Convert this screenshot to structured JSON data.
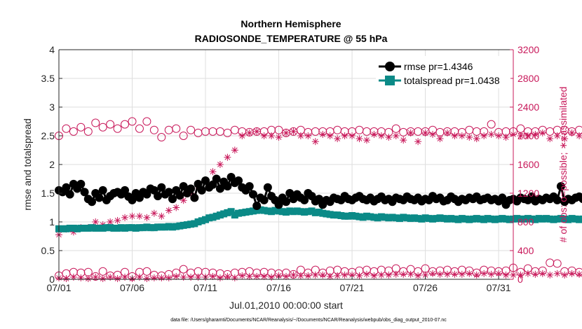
{
  "chart_data": {
    "type": "line",
    "title_line1": "Northern Hemisphere",
    "title_line2": "RADIOSONDE_TEMPERATURE @ 55 hPa",
    "xlabel": "Jul.01,2010 00:00:00 start",
    "ylabel_left": "rmse and totalspread",
    "ylabel_right": "# of obs: o=possible; ∗=assimilated",
    "footer": "data file: /Users/gharamti/Documents/NCAR/Reanalysis/~/Documents/NCAR/Reanalysis/webpub/obs_diag_output_2010-07.nc",
    "xlim": [
      0,
      31
    ],
    "ylim_left": [
      0,
      4
    ],
    "ylim_right": [
      0,
      3200
    ],
    "x_ticks": [
      {
        "day": 0,
        "label": "07/01"
      },
      {
        "day": 5,
        "label": "07/06"
      },
      {
        "day": 10,
        "label": "07/11"
      },
      {
        "day": 15,
        "label": "07/16"
      },
      {
        "day": 20,
        "label": "07/21"
      },
      {
        "day": 25,
        "label": "07/26"
      },
      {
        "day": 30,
        "label": "07/31"
      }
    ],
    "y_ticks_left": [
      {
        "value": 0,
        "label": "0"
      },
      {
        "value": 0.5,
        "label": "0.5"
      },
      {
        "value": 1,
        "label": "1"
      },
      {
        "value": 1.5,
        "label": "1.5"
      },
      {
        "value": 2,
        "label": "2"
      },
      {
        "value": 2.5,
        "label": "2.5"
      },
      {
        "value": 3,
        "label": "3"
      },
      {
        "value": 3.5,
        "label": "3.5"
      },
      {
        "value": 4,
        "label": "4"
      }
    ],
    "y_ticks_right": [
      {
        "value": 0,
        "label": "0"
      },
      {
        "value": 400,
        "label": "400"
      },
      {
        "value": 800,
        "label": "800"
      },
      {
        "value": 1200,
        "label": "1200"
      },
      {
        "value": 1600,
        "label": "1600"
      },
      {
        "value": 2000,
        "label": "2000"
      },
      {
        "value": 2400,
        "label": "2400"
      },
      {
        "value": 2800,
        "label": "2800"
      },
      {
        "value": 3200,
        "label": "3200"
      }
    ],
    "legend": [
      {
        "name": "rmse pr=1.4346",
        "color": "#000000",
        "marker": "circle"
      },
      {
        "name": "totalspread pr=1.0438",
        "color": "#0b8a87",
        "marker": "square"
      }
    ],
    "x_step_days": 0.25,
    "series": {
      "rmse": {
        "name": "rmse",
        "color": "#000000",
        "values": [
          1.55,
          1.52,
          1.6,
          1.48,
          1.66,
          1.58,
          1.66,
          1.52,
          1.4,
          1.35,
          1.5,
          1.42,
          1.55,
          1.38,
          1.45,
          1.5,
          1.52,
          1.48,
          1.55,
          1.44,
          1.38,
          1.5,
          1.42,
          1.52,
          1.48,
          1.58,
          1.55,
          1.45,
          1.6,
          1.48,
          1.52,
          1.4,
          1.55,
          1.46,
          1.62,
          1.5,
          1.58,
          1.42,
          1.66,
          1.55,
          1.72,
          1.6,
          1.65,
          1.75,
          1.58,
          1.7,
          1.62,
          1.78,
          1.68,
          1.72,
          1.6,
          1.55,
          1.62,
          1.48,
          1.28,
          1.42,
          1.38,
          1.6,
          1.45,
          1.38,
          1.3,
          1.42,
          1.35,
          1.5,
          1.4,
          1.48,
          1.42,
          1.38,
          1.5,
          1.45,
          1.36,
          1.4,
          1.3,
          1.38,
          1.35,
          1.42,
          1.4,
          1.38,
          1.45,
          1.4,
          1.38,
          1.42,
          1.45,
          1.4,
          1.38,
          1.42,
          1.36,
          1.4,
          1.44,
          1.38,
          1.4,
          1.35,
          1.42,
          1.4,
          1.38,
          1.44,
          1.4,
          1.38,
          1.42,
          1.36,
          1.4,
          1.38,
          1.45,
          1.4,
          1.42,
          1.36,
          1.38,
          1.44,
          1.4,
          1.35,
          1.4,
          1.38,
          1.42,
          1.4,
          1.44,
          1.38,
          1.4,
          1.42,
          1.38,
          1.4,
          1.36,
          1.42,
          1.3,
          1.38,
          1.4,
          1.36,
          1.42,
          1.4,
          1.38,
          1.44,
          1.36,
          1.4,
          1.38,
          1.42,
          1.4,
          1.44,
          1.38,
          1.62,
          1.35,
          1.4,
          1.38,
          1.42,
          1.44,
          1.4,
          1.38,
          1.42,
          1.4,
          1.36,
          1.42,
          1.4,
          1.38,
          1.4,
          1.44,
          1.4,
          1.38,
          1.42,
          1.36,
          1.4,
          1.3,
          1.42,
          1.38,
          1.4,
          1.36,
          1.42,
          1.4,
          1.38,
          1.44,
          1.4,
          1.36,
          1.42,
          1.4,
          1.38,
          1.52,
          1.44,
          1.4,
          1.38,
          1.42,
          1.36,
          1.38
        ]
      },
      "totalspread": {
        "name": "totalspread",
        "color": "#0b8a87",
        "values": [
          0.88,
          0.88,
          0.88,
          0.89,
          0.89,
          0.88,
          0.89,
          0.89,
          0.89,
          0.9,
          0.89,
          0.89,
          0.89,
          0.9,
          0.9,
          0.89,
          0.89,
          0.9,
          0.89,
          0.9,
          0.9,
          0.89,
          0.9,
          0.9,
          0.91,
          0.9,
          0.9,
          0.91,
          0.91,
          0.91,
          0.92,
          0.91,
          0.92,
          0.93,
          0.94,
          0.95,
          0.96,
          0.97,
          1.0,
          1.02,
          1.04,
          1.07,
          1.08,
          1.1,
          1.12,
          1.14,
          1.16,
          1.18,
          1.12,
          1.15,
          1.16,
          1.17,
          1.18,
          1.19,
          1.2,
          1.21,
          1.2,
          1.19,
          1.18,
          1.2,
          1.19,
          1.18,
          1.17,
          1.19,
          1.18,
          1.19,
          1.18,
          1.17,
          1.18,
          1.19,
          1.16,
          1.17,
          1.15,
          1.14,
          1.13,
          1.12,
          1.12,
          1.11,
          1.1,
          1.1,
          1.11,
          1.1,
          1.09,
          1.08,
          1.1,
          1.09,
          1.08,
          1.07,
          1.09,
          1.08,
          1.07,
          1.08,
          1.07,
          1.06,
          1.08,
          1.07,
          1.06,
          1.07,
          1.06,
          1.05,
          1.07,
          1.06,
          1.05,
          1.06,
          1.07,
          1.06,
          1.05,
          1.06,
          1.05,
          1.04,
          1.06,
          1.05,
          1.04,
          1.05,
          1.06,
          1.05,
          1.04,
          1.06,
          1.05,
          1.04,
          1.05,
          1.06,
          1.05,
          1.04,
          1.05,
          1.06,
          1.05,
          1.05,
          1.06,
          1.05,
          1.04,
          1.06,
          1.05,
          1.06,
          1.05,
          1.04,
          1.05,
          1.06,
          1.05,
          1.04,
          1.06,
          1.05,
          1.04,
          1.05,
          1.06,
          1.05,
          1.05,
          1.04,
          1.06,
          1.05,
          1.04,
          1.05,
          1.06,
          1.05,
          1.04,
          1.05,
          1.06,
          1.05,
          1.04,
          1.05,
          1.06,
          1.05,
          1.04,
          1.05,
          1.06,
          1.05,
          1.04,
          1.06,
          1.05,
          1.04,
          1.05,
          1.06,
          1.05,
          1.04,
          1.05,
          1.06,
          1.05,
          1.04,
          1.05,
          1.06
        ]
      },
      "obs_possible_upper": {
        "name": "possible (upper)",
        "color": "#c8185a",
        "marker": "open-circle",
        "values": [
          2000,
          2080,
          2100,
          2150,
          2060,
          1980,
          2120,
          2200,
          2060,
          2140,
          2180,
          2150,
          2120,
          2180,
          2160,
          2150,
          2100,
          2200,
          2160,
          2180,
          2200,
          2150,
          2100,
          2050,
          2200,
          2000,
          2080,
          2050,
          1980,
          2060,
          2080,
          2040,
          2100,
          2080,
          2000,
          2060,
          2080,
          2060,
          2040,
          2000,
          2060,
          2080,
          2060,
          2000,
          2060,
          2030,
          2040,
          2100,
          2080,
          2050,
          2060,
          2100,
          2050,
          2050,
          2060,
          2080,
          2060,
          2070,
          2080,
          2050,
          2080,
          2060,
          2040,
          2080,
          2060,
          2040,
          2080,
          2060,
          2050,
          2050,
          2060,
          2080,
          2060,
          2120,
          2060,
          2060,
          2080,
          2060,
          2060,
          2050,
          2060,
          2060,
          2080,
          2060,
          2060,
          2050,
          2060,
          2080,
          2060,
          2060,
          2050,
          2060,
          2100,
          2060,
          2050,
          2080,
          2060,
          2120,
          2060,
          2080,
          2060,
          2060,
          2080,
          2060,
          2050,
          2080,
          2060,
          2080,
          2060,
          2060,
          2050,
          2060,
          2080,
          2060,
          2060,
          2120,
          2060,
          2060,
          2160,
          2060,
          2050,
          2080,
          2060,
          2080,
          2060,
          2060,
          2100,
          2080,
          2060,
          2100,
          2060,
          2060,
          2080,
          2060,
          2060,
          2100,
          2080,
          2060,
          2080,
          2060,
          2060,
          2100,
          2080,
          2060,
          2100,
          2080,
          2050,
          2100,
          2080,
          2060,
          2100,
          2080,
          2200,
          2060,
          2080,
          2100,
          2060,
          2050,
          2080,
          2060,
          2060,
          2100,
          2080,
          2060,
          2100,
          2060,
          2080,
          2060,
          2060,
          2080,
          2060,
          2050,
          2060,
          2060,
          2080,
          2060,
          2060,
          2050
        ]
      },
      "obs_possible_lower": {
        "name": "possible (lower)",
        "color": "#c8185a",
        "marker": "open-circle",
        "values": [
          50,
          120,
          80,
          40,
          100,
          60,
          90,
          50,
          100,
          70,
          40,
          80,
          110,
          70,
          50,
          90,
          60,
          80,
          100,
          70,
          40,
          80,
          100,
          60,
          110,
          80,
          60,
          90,
          50,
          80,
          70,
          110,
          90,
          70,
          140,
          60,
          90,
          80,
          110,
          70,
          100,
          60,
          90,
          50,
          80,
          100,
          70,
          60,
          90,
          80,
          100,
          70,
          110,
          60,
          90,
          80,
          100,
          70,
          90,
          110,
          80,
          120,
          90,
          100,
          70,
          100,
          130,
          110,
          90,
          80,
          130,
          100,
          90,
          110,
          120,
          100,
          130,
          140,
          110,
          120,
          100,
          140,
          120,
          110,
          130,
          140,
          110,
          120,
          130,
          100,
          120,
          130,
          150,
          120,
          110,
          130,
          140,
          120,
          110,
          130,
          150,
          140,
          110,
          130,
          120,
          100,
          130,
          140,
          110,
          120,
          130,
          100,
          120,
          110,
          90,
          120,
          130,
          110,
          120,
          100,
          110,
          130,
          120,
          100,
          160,
          120,
          100,
          220,
          150,
          120,
          110,
          100,
          120,
          90,
          230,
          200,
          220,
          130,
          110,
          140,
          120,
          110,
          100,
          130,
          120,
          110,
          140,
          100,
          120,
          130,
          110,
          120,
          140,
          100,
          120,
          110,
          130,
          110,
          100,
          140,
          110,
          120,
          130,
          110,
          100,
          120,
          110,
          120,
          140,
          100,
          110,
          120,
          130,
          110,
          120,
          100,
          110,
          120,
          130,
          110,
          100,
          120
        ]
      },
      "obs_assimilated_upper": {
        "name": "assimilated (upper)",
        "color": "#c8185a",
        "marker": "asterisk",
        "values": [
          620,
          640,
          700,
          720,
          660,
          700,
          720,
          660,
          720,
          740,
          800,
          760,
          760,
          780,
          800,
          800,
          820,
          840,
          860,
          880,
          880,
          900,
          880,
          900,
          860,
          880,
          920,
          900,
          880,
          940,
          960,
          980,
          1000,
          1020,
          1100,
          1150,
          1200,
          1250,
          1300,
          1380,
          1380,
          1400,
          1500,
          1560,
          1600,
          1650,
          1700,
          1760,
          1800,
          1900,
          2000,
          2020,
          2040,
          2040,
          2060,
          2000,
          2000,
          2040,
          2000,
          2020,
          1980,
          2000,
          2040,
          2000,
          2060,
          2040,
          2000,
          1940,
          2000,
          1960,
          1920,
          1980,
          2020,
          1980,
          2000,
          2060,
          1960,
          2000,
          2000,
          2040,
          2000,
          2020,
          1960,
          2000,
          1940,
          2000,
          2020,
          1960,
          2000,
          2020,
          1980,
          2000,
          2000,
          1960,
          1940,
          1980,
          2040,
          2000,
          1920,
          2000,
          2040,
          1980,
          2020,
          2000,
          1960,
          1920,
          2040,
          1980,
          2000,
          1980,
          2000,
          2040,
          1980,
          2000,
          1960,
          2020,
          2000,
          1960,
          2020,
          1980,
          2000,
          2000,
          1980,
          1960,
          2020,
          1900,
          2000,
          2040,
          2000,
          1980,
          2020,
          2000,
          2040,
          1980,
          1960,
          2000,
          2000,
          2020,
          1960,
          2000,
          2040,
          1980,
          2000,
          1980,
          2020,
          2000,
          1980,
          2000,
          1960,
          2020,
          1980,
          2000,
          2040,
          1960,
          1960,
          1920,
          2000,
          2020,
          1960,
          2000,
          2040,
          1980,
          2000,
          1920,
          1960,
          2000,
          1980,
          2020,
          1960,
          2000,
          1960,
          2020,
          1980,
          1920,
          2000
        ]
      },
      "obs_assimilated_lower": {
        "name": "assimilated (lower)",
        "color": "#c8185a",
        "marker": "asterisk",
        "values": [
          20,
          30,
          10,
          20,
          30,
          10,
          20,
          30,
          10,
          20,
          30,
          20,
          10,
          20,
          30,
          20,
          10,
          20,
          30,
          20,
          10,
          20,
          30,
          20,
          10,
          30,
          20,
          10,
          20,
          30,
          20,
          30,
          40,
          20,
          30,
          40,
          30,
          20,
          30,
          40,
          30,
          20,
          40,
          30,
          20,
          30,
          40,
          30,
          20,
          40,
          50,
          30,
          40,
          50,
          40,
          30,
          40,
          50,
          30,
          40,
          50,
          60,
          40,
          50,
          60,
          40,
          50,
          60,
          50,
          40,
          60,
          50,
          60,
          50,
          40,
          60,
          50,
          70,
          60,
          50,
          60,
          70,
          50,
          60,
          70,
          60,
          50,
          70,
          60,
          70,
          60,
          50,
          70,
          60,
          70,
          60,
          70,
          60,
          50,
          70,
          60,
          70,
          80,
          60,
          70,
          60,
          70,
          60,
          70,
          60,
          70,
          60,
          80,
          70,
          60,
          70,
          80,
          60,
          70,
          60,
          80,
          70,
          60,
          70,
          60,
          70,
          60,
          70,
          80,
          60,
          70,
          60,
          80,
          70,
          60,
          70,
          80,
          70,
          60,
          70,
          80,
          60,
          70,
          60,
          80,
          70,
          60,
          70,
          80,
          60,
          70,
          80,
          70,
          60,
          70,
          80,
          70,
          60,
          70,
          80,
          70,
          60,
          70,
          80,
          60,
          70,
          80,
          70,
          60,
          70,
          80,
          60,
          70
        ]
      }
    }
  }
}
